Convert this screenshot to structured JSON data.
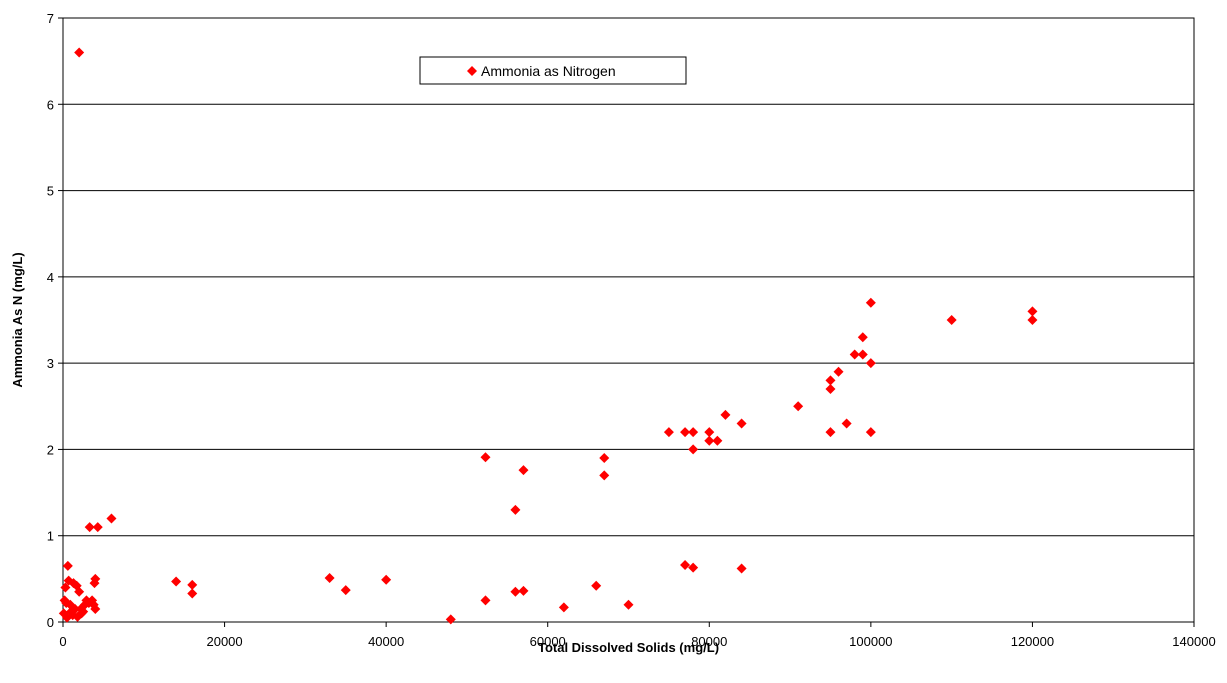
{
  "chart_data": {
    "type": "scatter",
    "title": "",
    "xlabel": "Total Dissolved Solids (mg/L)",
    "ylabel": "Ammonia As N (mg/L)",
    "xlim": [
      0,
      140000
    ],
    "ylim": [
      0,
      7
    ],
    "x_ticks": [
      0,
      20000,
      40000,
      60000,
      80000,
      100000,
      120000,
      140000
    ],
    "y_ticks": [
      0,
      1,
      2,
      3,
      4,
      5,
      6,
      7
    ],
    "grid": "horizontal",
    "legend_position": "top-center",
    "marker": "diamond",
    "series": [
      {
        "name": "Ammonia as Nitrogen",
        "color": "#ff0000",
        "points": [
          [
            2000,
            6.6
          ],
          [
            3300,
            1.1
          ],
          [
            4300,
            1.1
          ],
          [
            6000,
            1.2
          ],
          [
            600,
            0.65
          ],
          [
            300,
            0.4
          ],
          [
            700,
            0.48
          ],
          [
            200,
            0.25
          ],
          [
            400,
            0.22
          ],
          [
            900,
            0.2
          ],
          [
            100,
            0.1
          ],
          [
            1000,
            0.12
          ],
          [
            1500,
            0.15
          ],
          [
            1300,
            0.45
          ],
          [
            1700,
            0.42
          ],
          [
            2000,
            0.35
          ],
          [
            2300,
            0.1
          ],
          [
            2700,
            0.2
          ],
          [
            2900,
            0.25
          ],
          [
            3200,
            0.22
          ],
          [
            3600,
            0.25
          ],
          [
            3800,
            0.2
          ],
          [
            4000,
            0.15
          ],
          [
            3900,
            0.45
          ],
          [
            4000,
            0.5
          ],
          [
            1200,
            0.08
          ],
          [
            1800,
            0.06
          ],
          [
            2500,
            0.12
          ],
          [
            500,
            0.05
          ],
          [
            2200,
            0.15
          ],
          [
            14000,
            0.47
          ],
          [
            16000,
            0.43
          ],
          [
            16000,
            0.33
          ],
          [
            33000,
            0.51
          ],
          [
            35000,
            0.37
          ],
          [
            40000,
            0.49
          ],
          [
            48000,
            0.03
          ],
          [
            52300,
            1.91
          ],
          [
            52300,
            0.25
          ],
          [
            56000,
            1.3
          ],
          [
            56000,
            0.35
          ],
          [
            57000,
            1.76
          ],
          [
            57000,
            0.36
          ],
          [
            62000,
            0.17
          ],
          [
            66000,
            0.42
          ],
          [
            67000,
            1.9
          ],
          [
            67000,
            1.7
          ],
          [
            70000,
            0.2
          ],
          [
            75000,
            2.2
          ],
          [
            77000,
            2.2
          ],
          [
            77000,
            0.66
          ],
          [
            78000,
            2.2
          ],
          [
            78000,
            2.0
          ],
          [
            78000,
            0.63
          ],
          [
            80000,
            2.2
          ],
          [
            80000,
            2.1
          ],
          [
            81000,
            2.1
          ],
          [
            82000,
            2.4
          ],
          [
            84000,
            2.3
          ],
          [
            84000,
            0.62
          ],
          [
            91000,
            2.5
          ],
          [
            95000,
            2.8
          ],
          [
            95000,
            2.7
          ],
          [
            95000,
            2.2
          ],
          [
            96000,
            2.9
          ],
          [
            97000,
            2.3
          ],
          [
            98000,
            3.1
          ],
          [
            99000,
            3.3
          ],
          [
            99000,
            3.1
          ],
          [
            100000,
            3.7
          ],
          [
            100000,
            3.0
          ],
          [
            100000,
            2.2
          ],
          [
            110000,
            3.5
          ],
          [
            120000,
            3.6
          ],
          [
            120000,
            3.5
          ]
        ]
      }
    ]
  }
}
